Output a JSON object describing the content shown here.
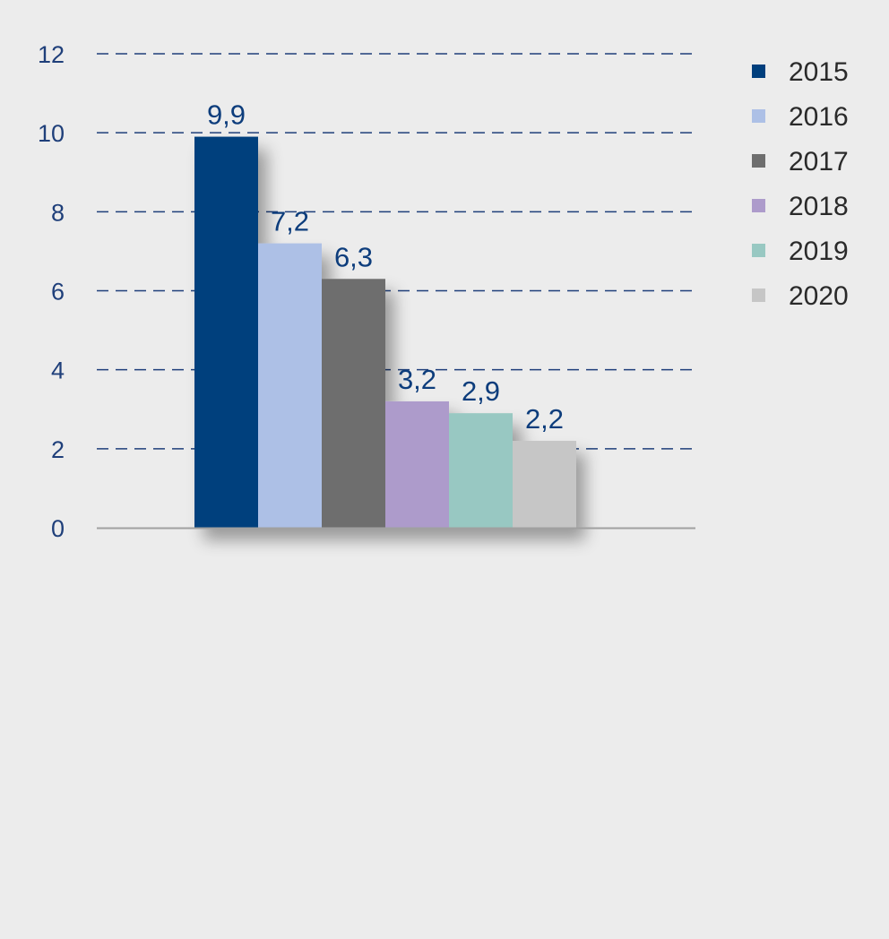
{
  "chart_data": {
    "type": "bar",
    "title": "",
    "xlabel": "",
    "ylabel": "",
    "ylim": [
      0,
      12
    ],
    "yticks": [
      0,
      2,
      4,
      6,
      8,
      10,
      12
    ],
    "grid": true,
    "legend_position": "top-right",
    "series": [
      {
        "name": "2015",
        "value": 9.9,
        "label": "9,9",
        "color": "#003f7d"
      },
      {
        "name": "2016",
        "value": 7.2,
        "label": "7,2",
        "color": "#adc0e6"
      },
      {
        "name": "2017",
        "value": 6.3,
        "label": "6,3",
        "color": "#6e6e6e"
      },
      {
        "name": "2018",
        "value": 3.2,
        "label": "3,2",
        "color": "#ad9bcb"
      },
      {
        "name": "2019",
        "value": 2.9,
        "label": "2,9",
        "color": "#98c8c2"
      },
      {
        "name": "2020",
        "value": 2.2,
        "label": "2,2",
        "color": "#c6c6c6"
      }
    ]
  }
}
